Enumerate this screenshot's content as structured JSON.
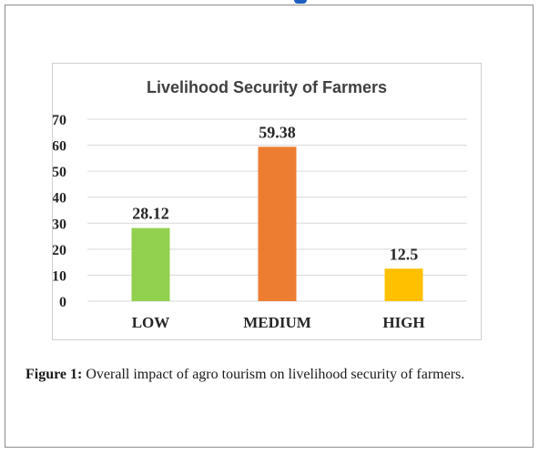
{
  "chart_data": {
    "type": "bar",
    "title": "Livelihood Security of Farmers",
    "categories": [
      "LOW",
      "MEDIUM",
      "HIGH"
    ],
    "values": [
      28.12,
      59.38,
      12.5
    ],
    "data_labels": [
      "28.12",
      "59.38",
      "12.5"
    ],
    "bar_colors": [
      "#92d050",
      "#ed7d31",
      "#ffc000"
    ],
    "yticks": [
      "0",
      "10",
      "20",
      "30",
      "40",
      "50",
      "60",
      "70"
    ],
    "ylim": [
      0,
      70
    ],
    "xlabel": "",
    "ylabel": "",
    "grid": true,
    "legend": "none"
  },
  "caption": {
    "label": "Figure 1:",
    "text": "Overall impact of agro tourism on livelihood security of farmers."
  },
  "colors": {
    "gridline": "#d9d9d9",
    "axis_text": "#262626",
    "accent_mark": "#1f5fbf"
  }
}
